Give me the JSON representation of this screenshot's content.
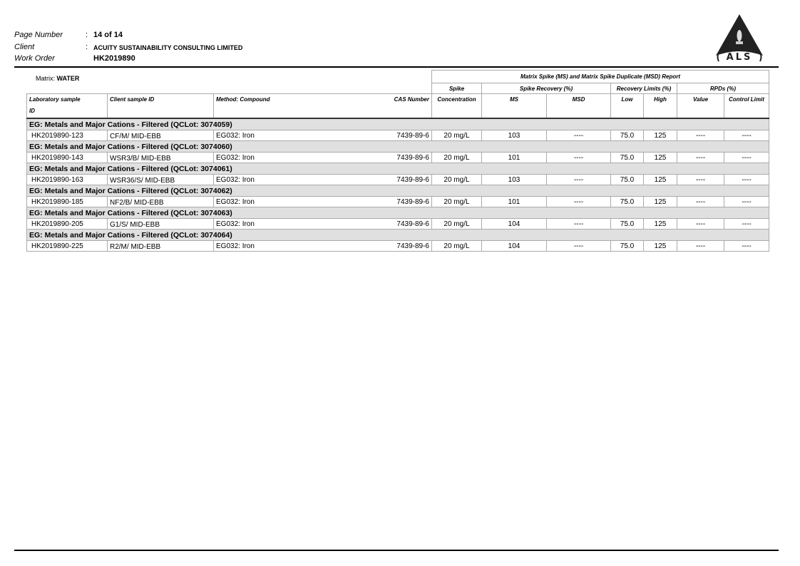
{
  "header": {
    "page_number_label": "Page Number",
    "page_number": "14 of 14",
    "client_label": "Client",
    "client": "ACUITY SUSTAINABILITY CONSULTING LIMITED",
    "work_order_label": "Work Order",
    "work_order": "HK2019890",
    "logo_text": "ALS"
  },
  "matrix": {
    "label": "Matrix:",
    "value": "WATER"
  },
  "table": {
    "report_title": "Matrix Spike (MS) and Matrix Spike Duplicate (MSD) Report",
    "groups": {
      "spike": "Spike",
      "spike_recovery": "Spike Recovery (%)",
      "recovery_limits": "Recovery Limits (%)",
      "rpds": "RPDs (%)"
    },
    "columns": {
      "lab_id": "Laboratory sample",
      "lab_id2": "ID",
      "client_id": "Client sample ID",
      "method": "Method: Compound",
      "cas": "CAS Number",
      "conc": "Concentration",
      "ms": "MS",
      "msd": "MSD",
      "low": "Low",
      "high": "High",
      "value": "Value",
      "control": "Control Limit"
    },
    "sections": [
      {
        "title": "EG: Metals and Major Cations - Filtered  (QCLot: 3074059)",
        "row": [
          "HK2019890-123",
          "CF/M/ MID-EBB",
          "EG032: Iron",
          "7439-89-6",
          "20 mg/L",
          "103",
          "----",
          "75.0",
          "125",
          "----",
          "----"
        ]
      },
      {
        "title": "EG: Metals and Major Cations - Filtered  (QCLot: 3074060)",
        "row": [
          "HK2019890-143",
          "WSR3/B/ MID-EBB",
          "EG032: Iron",
          "7439-89-6",
          "20 mg/L",
          "101",
          "----",
          "75.0",
          "125",
          "----",
          "----"
        ]
      },
      {
        "title": "EG: Metals and Major Cations - Filtered  (QCLot: 3074061)",
        "row": [
          "HK2019890-163",
          "WSR36/S/ MID-EBB",
          "EG032: Iron",
          "7439-89-6",
          "20 mg/L",
          "103",
          "----",
          "75.0",
          "125",
          "----",
          "----"
        ]
      },
      {
        "title": "EG: Metals and Major Cations - Filtered  (QCLot: 3074062)",
        "row": [
          "HK2019890-185",
          "NF2/B/ MID-EBB",
          "EG032: Iron",
          "7439-89-6",
          "20 mg/L",
          "101",
          "----",
          "75.0",
          "125",
          "----",
          "----"
        ]
      },
      {
        "title": "EG: Metals and Major Cations - Filtered  (QCLot: 3074063)",
        "row": [
          "HK2019890-205",
          "G1/S/ MID-EBB",
          "EG032: Iron",
          "7439-89-6",
          "20 mg/L",
          "104",
          "----",
          "75.0",
          "125",
          "----",
          "----"
        ]
      },
      {
        "title": "EG: Metals and Major Cations - Filtered  (QCLot: 3074064)",
        "row": [
          "HK2019890-225",
          "R2/M/ MID-EBB",
          "EG032: Iron",
          "7439-89-6",
          "20 mg/L",
          "104",
          "----",
          "75.0",
          "125",
          "----",
          "----"
        ]
      }
    ]
  }
}
